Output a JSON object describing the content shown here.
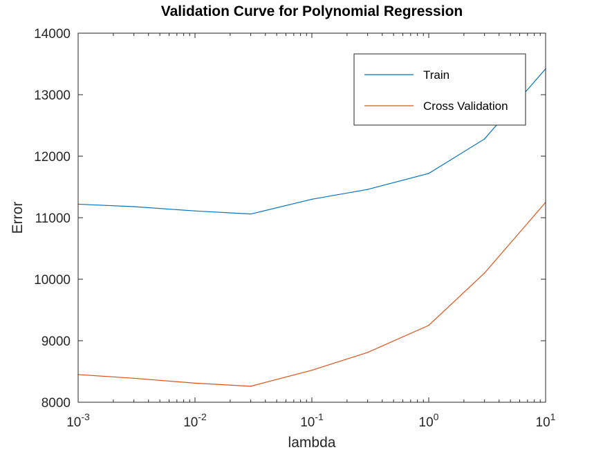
{
  "chart_data": {
    "type": "line",
    "title": "Validation Curve for Polynomial Regression",
    "xlabel": "lambda",
    "ylabel": "Error",
    "xscale": "log",
    "xlim": [
      0.001,
      10
    ],
    "ylim": [
      8000,
      14000
    ],
    "xticks": [
      {
        "value": 0.001,
        "base": "10",
        "exp": "-3"
      },
      {
        "value": 0.01,
        "base": "10",
        "exp": "-2"
      },
      {
        "value": 0.1,
        "base": "10",
        "exp": "-1"
      },
      {
        "value": 1,
        "base": "10",
        "exp": "0"
      },
      {
        "value": 10,
        "base": "10",
        "exp": "1"
      }
    ],
    "yticks": [
      8000,
      9000,
      10000,
      11000,
      12000,
      13000,
      14000
    ],
    "ytick_labels": [
      "8000",
      "9000",
      "10000",
      "11000",
      "12000",
      "13000",
      "14000"
    ],
    "x": [
      0.001,
      0.003,
      0.01,
      0.03,
      0.1,
      0.3,
      1,
      3,
      10
    ],
    "series": [
      {
        "name": "Train",
        "color": "#0072BD",
        "values": [
          11220,
          11180,
          11110,
          11060,
          11300,
          11460,
          11720,
          12280,
          13420
        ]
      },
      {
        "name": "Cross Validation",
        "color": "#D95319",
        "values": [
          8450,
          8390,
          8310,
          8260,
          8520,
          8810,
          9250,
          10100,
          11250
        ]
      }
    ],
    "legend_position": "top-right",
    "grid": false
  }
}
